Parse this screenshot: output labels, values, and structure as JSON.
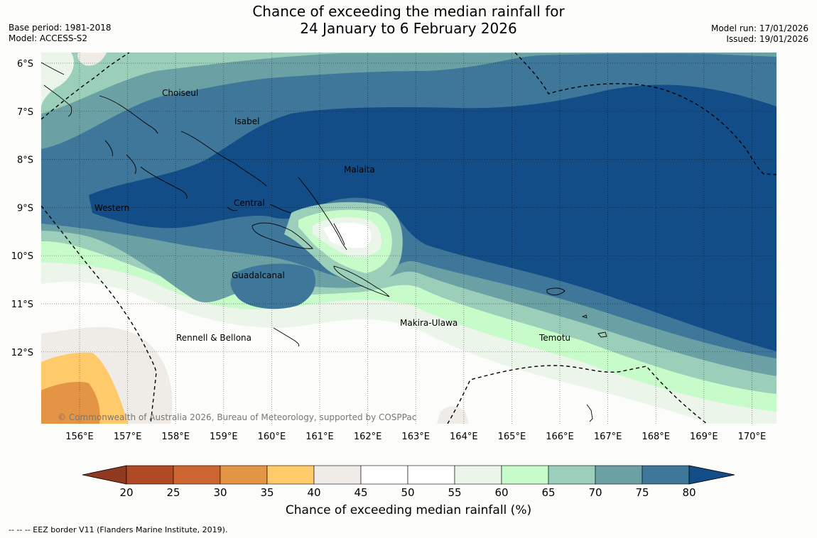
{
  "title": {
    "line1": "Chance of exceeding the median rainfall for",
    "line2": "24 January to 6 February 2026"
  },
  "meta_left": {
    "base_period": "Base period: 1981-2018",
    "model": "Model: ACCESS-S2"
  },
  "meta_right": {
    "model_run": "Model run: 17/01/2026",
    "issued": "Issued: 19/01/2026"
  },
  "lat_labels": [
    "6°S",
    "7°S",
    "8°S",
    "9°S",
    "10°S",
    "11°S",
    "12°S"
  ],
  "lon_labels": [
    "156°E",
    "157°E",
    "158°E",
    "159°E",
    "160°E",
    "161°E",
    "162°E",
    "163°E",
    "164°E",
    "165°E",
    "166°E",
    "167°E",
    "168°E",
    "169°E",
    "170°E"
  ],
  "region_labels": {
    "choiseul": "Choiseul",
    "isabel": "Isabel",
    "malaita": "Malaita",
    "western": "Western",
    "central": "Central",
    "guadalcanal": "Guadalcanal",
    "rennell": "Rennell & Bellona",
    "makira": "Makira-Ulawa",
    "temotu": "Temotu"
  },
  "copyright": "© Commonwealth of Australia 2026, Bureau of Meteorology, supported by COSPPac",
  "colorbar": {
    "ticks": [
      "20",
      "25",
      "30",
      "35",
      "40",
      "45",
      "50",
      "55",
      "60",
      "65",
      "70",
      "75",
      "80"
    ],
    "label": "Chance of exceeding median rainfall (%)",
    "colors": {
      "below20": "#8f3a20",
      "c20_25": "#b04a24",
      "c25_30": "#cc6530",
      "c30_35": "#e39444",
      "c35_40": "#ffcb6a",
      "c40_45": "#efebe6",
      "c45_50": "#ffffff",
      "c50_55": "#ffffff",
      "c55_60": "#ecf5ea",
      "c60_65": "#c7fbca",
      "c65_70": "#9bcfba",
      "c70_75": "#6ba1a4",
      "c75_80": "#3e7799",
      "above80": "#134d87"
    }
  },
  "footer": "-- -- -- EEZ border V11 (Flanders Marine Institute, 2019)."
}
